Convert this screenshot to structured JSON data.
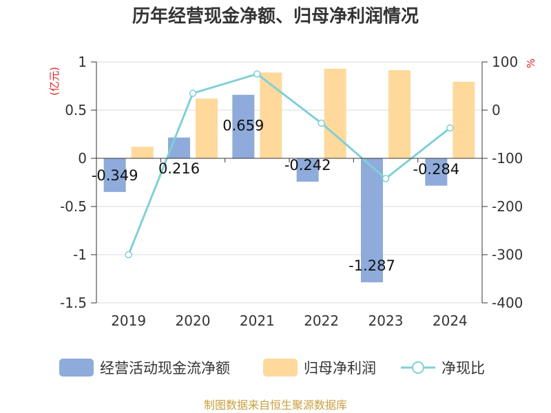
{
  "chart_data": {
    "type": "bar",
    "title": "历年经营现金净额、归母净利润情况",
    "left_unit": "(亿元)",
    "right_unit": "%",
    "categories": [
      "2019",
      "2020",
      "2021",
      "2022",
      "2023",
      "2024"
    ],
    "left_axis": {
      "min": -1.5,
      "max": 1,
      "ticks": [
        "1",
        "0.5",
        "0",
        "-0.5",
        "-1",
        "-1.5"
      ],
      "tick_values": [
        1,
        0.5,
        0,
        -0.5,
        -1,
        -1.5
      ]
    },
    "right_axis": {
      "min": -400,
      "max": 100,
      "ticks": [
        "100",
        "0",
        "-100",
        "-200",
        "-300",
        "-400"
      ],
      "tick_values": [
        100,
        0,
        -100,
        -200,
        -300,
        -400
      ]
    },
    "series": [
      {
        "name": "经营活动现金流净额",
        "type": "bar",
        "axis": "left",
        "color": "#8eabdb",
        "values": [
          -0.349,
          0.216,
          0.659,
          -0.242,
          -1.287,
          -0.284
        ],
        "labels": [
          "-0.349",
          "0.216",
          "0.659",
          "-0.242",
          "-1.287",
          "-0.284"
        ]
      },
      {
        "name": "归母净利润",
        "type": "bar",
        "axis": "left",
        "color": "#fed99b",
        "values": [
          0.12,
          0.62,
          0.89,
          0.93,
          0.915,
          0.795
        ]
      },
      {
        "name": "净现比",
        "type": "line",
        "axis": "right",
        "color": "#7fd0d6",
        "values": [
          -300,
          35,
          75,
          -27,
          -142,
          -37
        ]
      }
    ],
    "grid": true
  },
  "legend": [
    {
      "label": "经营活动现金流净额",
      "icon": "bar-swatch"
    },
    {
      "label": "归母净利润",
      "icon": "bar-swatch"
    },
    {
      "label": "净现比",
      "icon": "line-marker"
    }
  ],
  "source": "制图数据来自恒生聚源数据库"
}
